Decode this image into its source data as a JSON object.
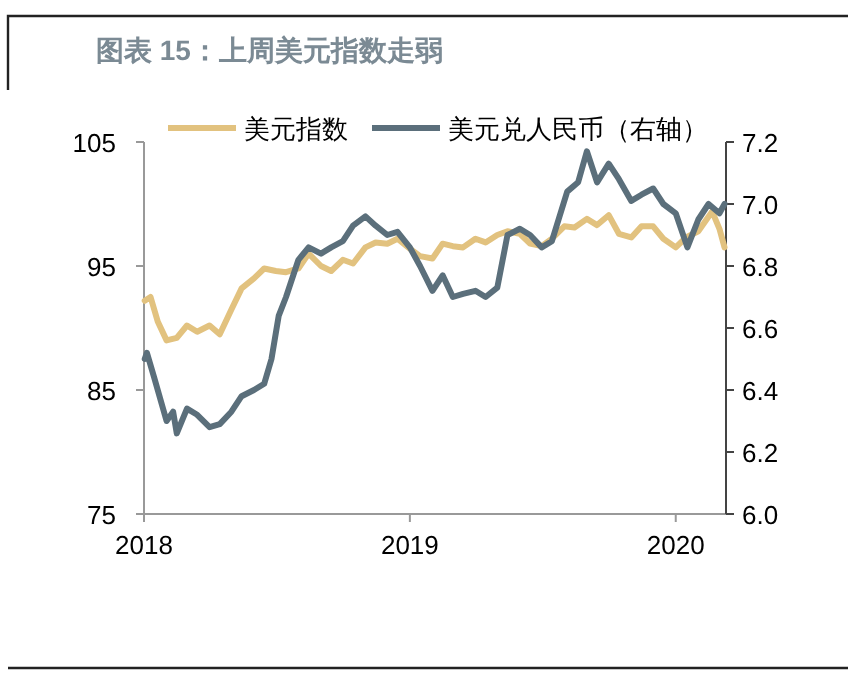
{
  "chart_data": {
    "type": "line",
    "title": "图表 15：上周美元指数走弱",
    "xlim": [
      "2018-01-01",
      "2020-03-10"
    ],
    "xticks": [
      {
        "value": "2018-01-01",
        "label": "2018"
      },
      {
        "value": "2019-01-01",
        "label": "2019"
      },
      {
        "value": "2020-01-01",
        "label": "2020"
      }
    ],
    "ylim": [
      75,
      105
    ],
    "yticks": [
      75,
      85,
      95,
      105
    ],
    "y2lim": [
      6.0,
      7.2
    ],
    "y2ticks": [
      {
        "value": 6.0,
        "label": "6.0"
      },
      {
        "value": 6.2,
        "label": "6.2"
      },
      {
        "value": 6.4,
        "label": "6.4"
      },
      {
        "value": 6.6,
        "label": "6.6"
      },
      {
        "value": 6.8,
        "label": "6.8"
      },
      {
        "value": 7.0,
        "label": "7.0"
      },
      {
        "value": 7.2,
        "label": "7.2"
      }
    ],
    "legend": "top",
    "grid": false,
    "series": [
      {
        "name": "美元指数",
        "color": "#e2c27f",
        "x": [
          "2018-01-02",
          "2018-01-10",
          "2018-01-20",
          "2018-02-01",
          "2018-02-15",
          "2018-03-01",
          "2018-03-15",
          "2018-04-01",
          "2018-04-15",
          "2018-05-01",
          "2018-05-15",
          "2018-06-01",
          "2018-06-15",
          "2018-07-01",
          "2018-07-15",
          "2018-08-01",
          "2018-08-15",
          "2018-09-01",
          "2018-09-15",
          "2018-10-01",
          "2018-10-15",
          "2018-11-01",
          "2018-11-15",
          "2018-12-01",
          "2018-12-15",
          "2019-01-01",
          "2019-01-15",
          "2019-02-01",
          "2019-02-15",
          "2019-03-01",
          "2019-03-15",
          "2019-04-01",
          "2019-04-15",
          "2019-05-01",
          "2019-05-15",
          "2019-06-01",
          "2019-06-15",
          "2019-07-01",
          "2019-07-15",
          "2019-08-01",
          "2019-08-15",
          "2019-09-01",
          "2019-09-15",
          "2019-10-01",
          "2019-10-15",
          "2019-11-01",
          "2019-11-15",
          "2019-12-01",
          "2019-12-15",
          "2020-01-01",
          "2020-01-15",
          "2020-02-01",
          "2020-02-20",
          "2020-03-01",
          "2020-03-08"
        ],
        "values": [
          92.2,
          92.5,
          90.5,
          89.0,
          89.2,
          90.2,
          89.7,
          90.2,
          89.5,
          91.5,
          93.2,
          94.0,
          94.8,
          94.6,
          94.5,
          94.8,
          96.0,
          95.0,
          94.6,
          95.5,
          95.2,
          96.5,
          96.9,
          96.8,
          97.2,
          96.4,
          95.8,
          95.6,
          96.8,
          96.6,
          96.5,
          97.2,
          96.9,
          97.5,
          97.8,
          97.6,
          96.8,
          96.6,
          97.2,
          98.2,
          98.1,
          98.8,
          98.3,
          99.1,
          97.6,
          97.3,
          98.2,
          98.2,
          97.2,
          96.5,
          97.3,
          97.8,
          99.4,
          98.0,
          96.5
        ]
      },
      {
        "name": "美元兑人民币（右轴）",
        "color": "#5b6f7b",
        "axis": "y2",
        "x": [
          "2018-01-02",
          "2018-01-05",
          "2018-01-15",
          "2018-02-01",
          "2018-02-10",
          "2018-02-15",
          "2018-03-01",
          "2018-03-15",
          "2018-04-01",
          "2018-04-15",
          "2018-05-01",
          "2018-05-15",
          "2018-06-01",
          "2018-06-15",
          "2018-06-25",
          "2018-07-05",
          "2018-07-15",
          "2018-08-01",
          "2018-08-15",
          "2018-09-01",
          "2018-09-15",
          "2018-10-01",
          "2018-10-15",
          "2018-11-01",
          "2018-11-15",
          "2018-12-01",
          "2018-12-15",
          "2019-01-01",
          "2019-01-15",
          "2019-02-01",
          "2019-02-15",
          "2019-03-01",
          "2019-03-15",
          "2019-04-01",
          "2019-04-15",
          "2019-05-01",
          "2019-05-15",
          "2019-06-01",
          "2019-06-15",
          "2019-07-01",
          "2019-07-15",
          "2019-08-05",
          "2019-08-20",
          "2019-09-01",
          "2019-09-15",
          "2019-10-01",
          "2019-10-15",
          "2019-11-01",
          "2019-11-15",
          "2019-12-01",
          "2019-12-15",
          "2020-01-01",
          "2020-01-17",
          "2020-02-01",
          "2020-02-15",
          "2020-03-01",
          "2020-03-08"
        ],
        "values": [
          6.5,
          6.52,
          6.44,
          6.3,
          6.33,
          6.26,
          6.34,
          6.32,
          6.28,
          6.29,
          6.33,
          6.38,
          6.4,
          6.42,
          6.5,
          6.64,
          6.7,
          6.82,
          6.86,
          6.84,
          6.86,
          6.88,
          6.93,
          6.96,
          6.93,
          6.9,
          6.91,
          6.86,
          6.8,
          6.72,
          6.77,
          6.7,
          6.71,
          6.72,
          6.7,
          6.73,
          6.9,
          6.92,
          6.9,
          6.86,
          6.88,
          7.04,
          7.07,
          7.17,
          7.07,
          7.13,
          7.08,
          7.01,
          7.03,
          7.05,
          7.0,
          6.97,
          6.86,
          6.95,
          7.0,
          6.97,
          7.0
        ]
      }
    ]
  }
}
